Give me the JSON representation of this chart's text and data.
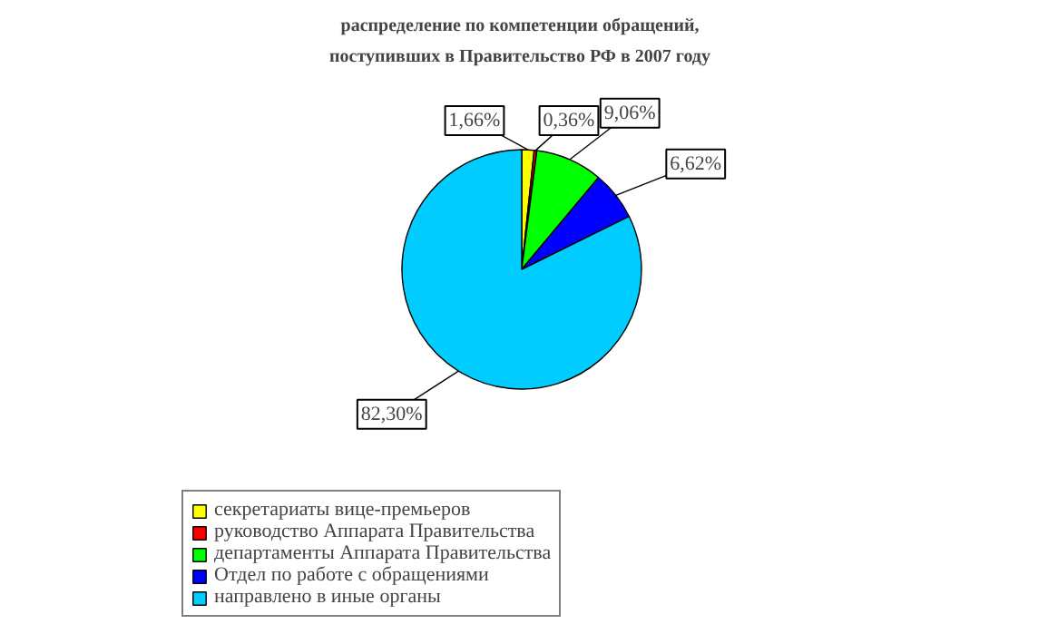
{
  "chart_data": {
    "type": "pie",
    "title": "распределение по компетенции обращений, поступивших в Правительство РФ в 2007 году",
    "categories": [
      "секретариаты вице-премьеров",
      "руководство Аппарата Правительства",
      "департаменты Аппарата Правительства",
      "Отдел по работе с обращениями",
      "направлено в иные органы"
    ],
    "values": [
      1.66,
      0.36,
      9.06,
      6.62,
      82.3
    ],
    "colors": [
      "#ffff00",
      "#ff0000",
      "#00ff00",
      "#0000ff",
      "#00ccff"
    ],
    "value_labels": [
      "1,66%",
      "0,36%",
      "9,06%",
      "6,62%",
      "82,30%"
    ],
    "legend": "bottom"
  }
}
